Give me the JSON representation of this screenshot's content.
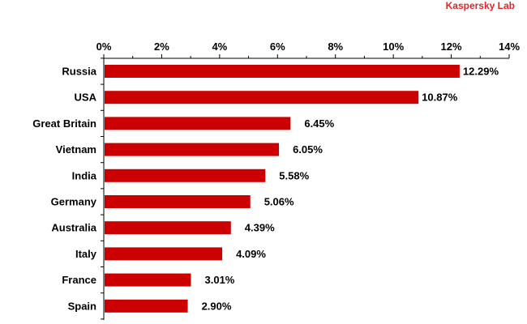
{
  "brand": {
    "label": "Kaspersky Lab",
    "color": "#e2232a"
  },
  "chart_data": {
    "type": "bar",
    "orientation": "horizontal",
    "categories": [
      "Russia",
      "USA",
      "Great Britain",
      "Vietnam",
      "India",
      "Germany",
      "Australia",
      "Italy",
      "France",
      "Spain"
    ],
    "values": [
      12.29,
      10.87,
      6.45,
      6.05,
      5.58,
      5.06,
      4.39,
      4.09,
      3.01,
      2.9
    ],
    "value_labels": [
      "12.29%",
      "10.87%",
      "6.45%",
      "6.05%",
      "5.58%",
      "5.06%",
      "4.39%",
      "4.09%",
      "3.01%",
      "2.90%"
    ],
    "xlim": [
      0,
      14
    ],
    "x_ticks": [
      0,
      2,
      4,
      6,
      8,
      10,
      12,
      14
    ],
    "x_tick_labels": [
      "0%",
      "2%",
      "4%",
      "6%",
      "8%",
      "10%",
      "12%",
      "14%"
    ],
    "x_axis_position": "top",
    "title": "",
    "xlabel": "",
    "ylabel": "",
    "bar_color": "#cc0000",
    "grid": false,
    "legend": "none"
  }
}
